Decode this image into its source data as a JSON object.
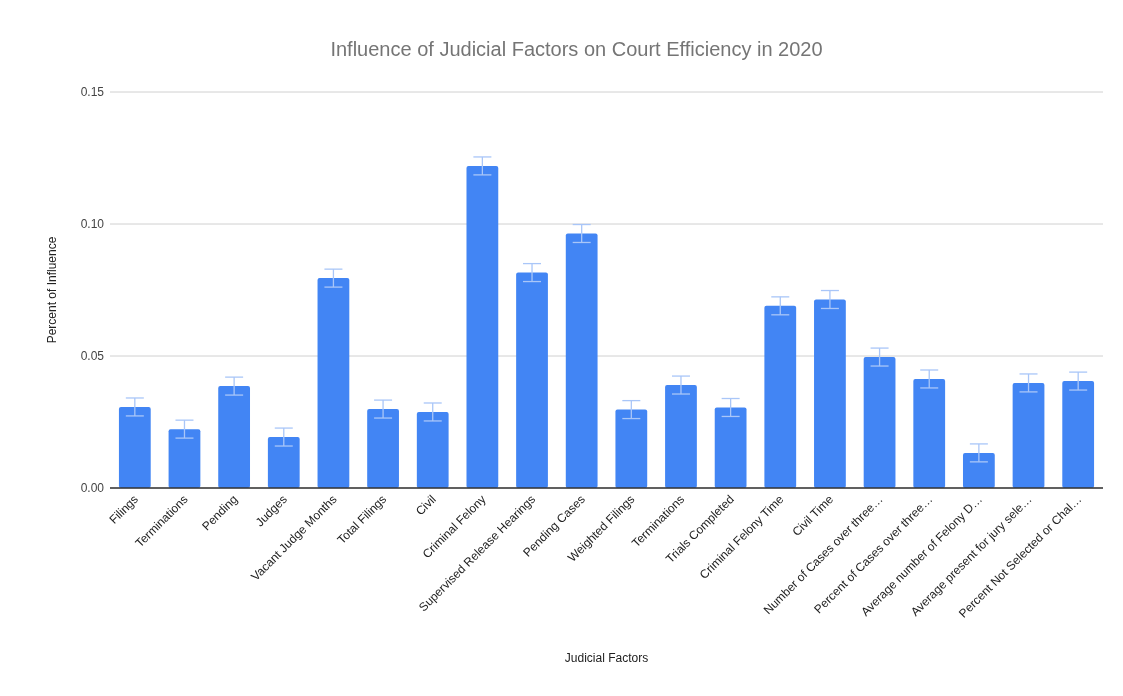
{
  "chart_data": {
    "type": "bar",
    "title": "Influence of Judicial Factors on Court Efficiency in 2020",
    "xlabel": "Judicial Factors",
    "ylabel": "Percent of Influence",
    "categories": [
      "Filings",
      "Terminations",
      "Pending",
      "Judges",
      "Vacant Judge Months",
      "Total Filings",
      "Civil",
      "Criminal Felony",
      "Supervised Release Hearings",
      "Pending Cases",
      "Weighted Filings",
      "Terminations",
      "Trials Completed",
      "Criminal Felony Time",
      "Civil Time",
      "Number of Cases over three…",
      "Percent of Cases over three…",
      "Average number of Felony D…",
      "Average present for jury sele…",
      "Percent Not Selected or Chal…"
    ],
    "values": [
      0.0307,
      0.0223,
      0.0386,
      0.0193,
      0.0795,
      0.0299,
      0.0288,
      0.122,
      0.0816,
      0.0964,
      0.0297,
      0.039,
      0.0305,
      0.069,
      0.0714,
      0.0496,
      0.0413,
      0.0133,
      0.0398,
      0.0405
    ],
    "errors": [
      0.0034,
      0.0034,
      0.0034,
      0.0034,
      0.0034,
      0.0034,
      0.0034,
      0.0034,
      0.0034,
      0.0034,
      0.0034,
      0.0034,
      0.0034,
      0.0034,
      0.0034,
      0.0034,
      0.0034,
      0.0034,
      0.0034,
      0.0034
    ],
    "color": "#4285f4",
    "ylim": [
      0,
      0.15
    ],
    "yticks": [
      {
        "value": 0,
        "label": "0.00"
      },
      {
        "value": 0.05,
        "label": "0.05"
      },
      {
        "value": 0.1,
        "label": "0.10"
      },
      0.15
    ],
    "grid": "y"
  }
}
